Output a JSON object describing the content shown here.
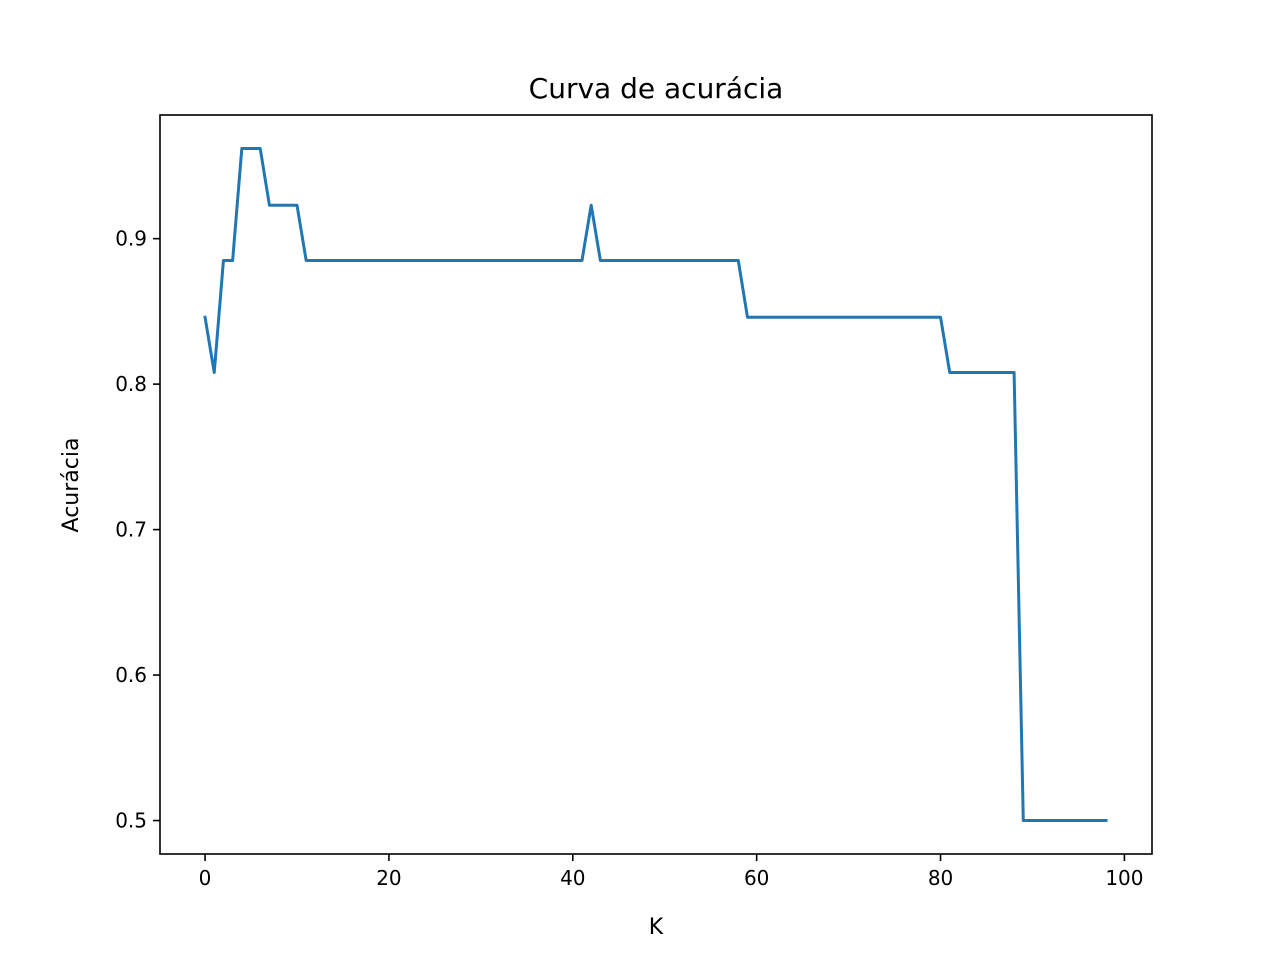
{
  "chart_data": {
    "type": "line",
    "title": "Curva de acurácia",
    "xlabel": "K",
    "ylabel": "Acurácia",
    "xlim": [
      -4.9,
      103
    ],
    "ylim": [
      0.477,
      0.985
    ],
    "xticks": [
      0,
      20,
      40,
      60,
      80,
      100
    ],
    "yticks": [
      0.5,
      0.6,
      0.7,
      0.8,
      0.9
    ],
    "xtick_labels": [
      "0",
      "20",
      "40",
      "60",
      "80",
      "100"
    ],
    "ytick_labels": [
      "0.5",
      "0.6",
      "0.7",
      "0.8",
      "0.9"
    ],
    "grid": false,
    "line_color": "#1f77b4",
    "x": [
      0,
      1,
      2,
      3,
      4,
      5,
      6,
      7,
      8,
      9,
      10,
      11,
      12,
      13,
      14,
      15,
      16,
      17,
      18,
      19,
      20,
      21,
      22,
      23,
      24,
      25,
      26,
      27,
      28,
      29,
      30,
      31,
      32,
      33,
      34,
      35,
      36,
      37,
      38,
      39,
      40,
      41,
      42,
      43,
      44,
      45,
      46,
      47,
      48,
      49,
      50,
      51,
      52,
      53,
      54,
      55,
      56,
      57,
      58,
      59,
      60,
      61,
      62,
      63,
      64,
      65,
      66,
      67,
      68,
      69,
      70,
      71,
      72,
      73,
      74,
      75,
      76,
      77,
      78,
      79,
      80,
      81,
      82,
      83,
      84,
      85,
      86,
      87,
      88,
      89,
      90,
      91,
      92,
      93,
      94,
      95,
      96,
      97,
      98
    ],
    "y": [
      0.846,
      0.808,
      0.885,
      0.885,
      0.962,
      0.962,
      0.962,
      0.923,
      0.923,
      0.923,
      0.923,
      0.885,
      0.885,
      0.885,
      0.885,
      0.885,
      0.885,
      0.885,
      0.885,
      0.885,
      0.885,
      0.885,
      0.885,
      0.885,
      0.885,
      0.885,
      0.885,
      0.885,
      0.885,
      0.885,
      0.885,
      0.885,
      0.885,
      0.885,
      0.885,
      0.885,
      0.885,
      0.885,
      0.885,
      0.885,
      0.885,
      0.885,
      0.923,
      0.885,
      0.885,
      0.885,
      0.885,
      0.885,
      0.885,
      0.885,
      0.885,
      0.885,
      0.885,
      0.885,
      0.885,
      0.885,
      0.885,
      0.885,
      0.885,
      0.846,
      0.846,
      0.846,
      0.846,
      0.846,
      0.846,
      0.846,
      0.846,
      0.846,
      0.846,
      0.846,
      0.846,
      0.846,
      0.846,
      0.846,
      0.846,
      0.846,
      0.846,
      0.846,
      0.846,
      0.846,
      0.846,
      0.808,
      0.808,
      0.808,
      0.808,
      0.808,
      0.808,
      0.808,
      0.808,
      0.5,
      0.5,
      0.5,
      0.5,
      0.5,
      0.5,
      0.5,
      0.5,
      0.5,
      0.5
    ]
  }
}
